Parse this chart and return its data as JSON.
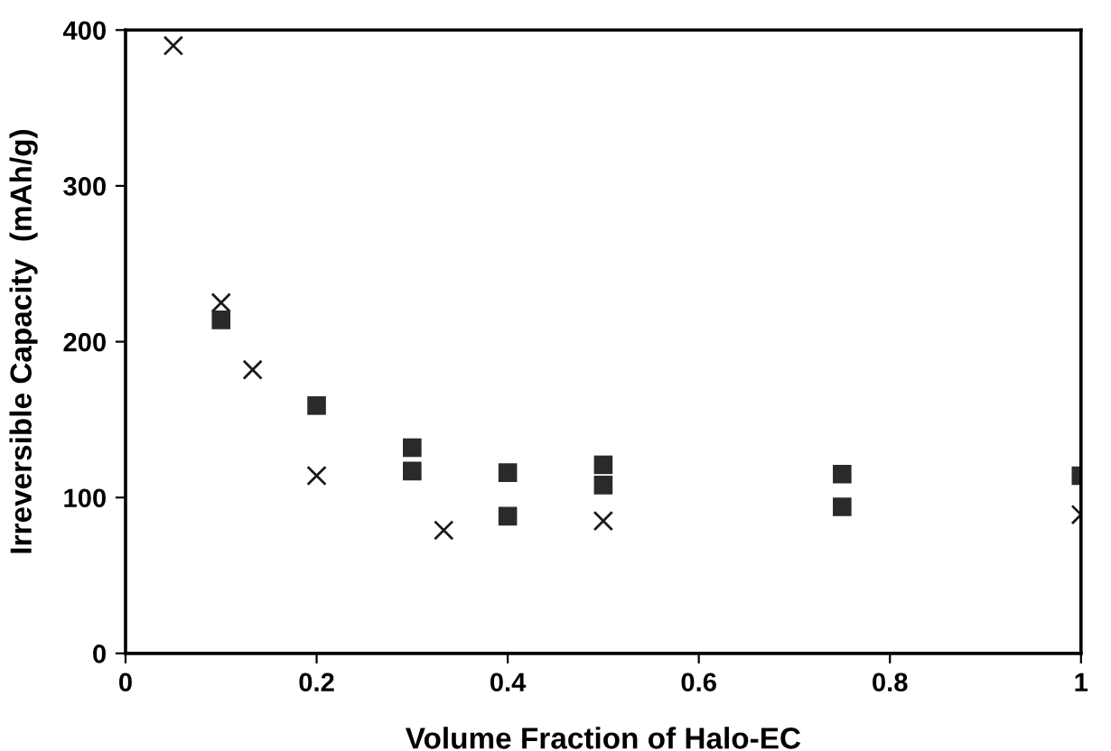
{
  "chart_data": {
    "type": "scatter",
    "xlabel": "Volume Fraction of Halo-EC",
    "ylabel": "Irreversible Capacity  (mAh/g)",
    "xlim": [
      0,
      1
    ],
    "xticks": [
      0,
      0.2,
      0.4,
      0.6,
      0.8,
      1
    ],
    "ylim": [
      0,
      400
    ],
    "yticks": [
      0,
      100,
      200,
      300,
      400
    ],
    "grid": false,
    "legend": false,
    "series": [
      {
        "color": "#1a1a1a",
        "marker": "cross",
        "x": [
          0.05,
          0.1,
          0.133,
          0.2,
          0.333,
          0.5,
          1.0
        ],
        "values": [
          390,
          225,
          182,
          114,
          79,
          85,
          89
        ]
      },
      {
        "color": "#2a2a2a",
        "marker": "square",
        "x": [
          0.1,
          0.2,
          0.3,
          0.3,
          0.4,
          0.4,
          0.5,
          0.5,
          0.75,
          0.75,
          1.0
        ],
        "values": [
          214,
          159,
          132,
          117,
          116,
          88,
          121,
          108,
          115,
          94,
          114
        ]
      }
    ]
  }
}
